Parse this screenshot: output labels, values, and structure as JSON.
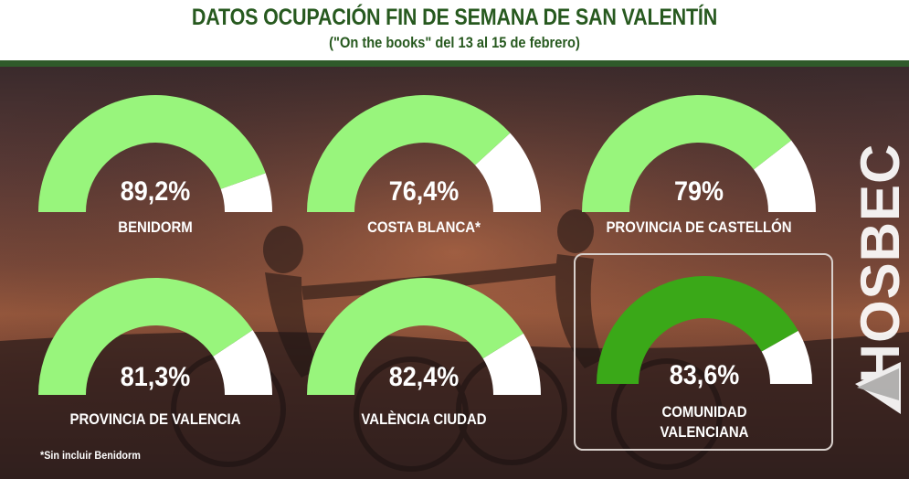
{
  "header": {
    "title": "DATOS OCUPACIÓN FIN DE SEMANA DE SAN VALENTÍN",
    "subtitle": "(\"On the books\" del 13 al 15 de febrero)"
  },
  "chart_data": {
    "type": "gauge",
    "title": "DATOS OCUPACIÓN FIN DE SEMANA DE SAN VALENTÍN",
    "subtitle": "(\"On the books\" del 13 al 15 de febrero)",
    "range": [
      0,
      100
    ],
    "unit": "%",
    "items": [
      {
        "label": "BENIDORM",
        "value": 89.2,
        "display": "89,2%"
      },
      {
        "label": "COSTA BLANCA*",
        "value": 76.4,
        "display": "76,4%"
      },
      {
        "label": "PROVINCIA DE CASTELLÓN",
        "value": 79,
        "display": "79%"
      },
      {
        "label": "PROVINCIA DE VALENCIA",
        "value": 81.3,
        "display": "81,3%"
      },
      {
        "label": "VALÈNCIA CIUDAD",
        "value": 82.4,
        "display": "82,4%"
      },
      {
        "label": "COMUNIDAD VALENCIANA",
        "label_lines": [
          "COMUNIDAD",
          "VALENCIANA"
        ],
        "value": 83.6,
        "display": "83,6%",
        "highlighted": true
      }
    ],
    "colors": {
      "fill": "#98f57c",
      "fill_highlight": "#3aa818",
      "remainder": "#ffffff"
    }
  },
  "footnote": "*Sin incluir Benidorm",
  "logo": {
    "text": "HOSBEC",
    "icon": "hosbec-logo-icon"
  }
}
